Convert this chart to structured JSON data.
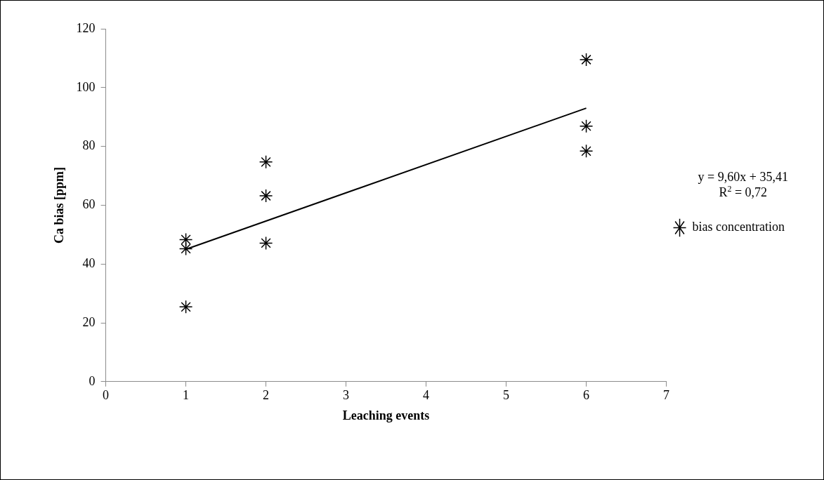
{
  "chart_data": {
    "type": "scatter",
    "xlabel": "Leaching events",
    "ylabel": "Ca bias [ppm]",
    "xlim": [
      0,
      7
    ],
    "xticks": [
      0,
      1,
      2,
      3,
      4,
      5,
      6,
      7
    ],
    "ylim": [
      0,
      120
    ],
    "yticks": [
      0,
      20,
      40,
      60,
      80,
      100,
      120
    ],
    "grid": false,
    "legend": "right",
    "marker": "cross",
    "annotations": [
      "y = 9,60x + 35,41",
      "R$^{2}$ = 0,72"
    ],
    "series": [
      {
        "name": "bias concentration",
        "color": "#000000",
        "x": [
          1,
          1,
          1,
          2,
          2,
          2,
          6,
          6,
          6
        ],
        "values": [
          48.3,
          45.2,
          25.4,
          74.7,
          63.2,
          47.1,
          109.5,
          86.9,
          78.4
        ]
      },
      {
        "type": "line",
        "color": "#000000",
        "marker": "none",
        "x": [
          1,
          6
        ],
        "values": [
          45.0,
          93.0
        ]
      }
    ]
  }
}
